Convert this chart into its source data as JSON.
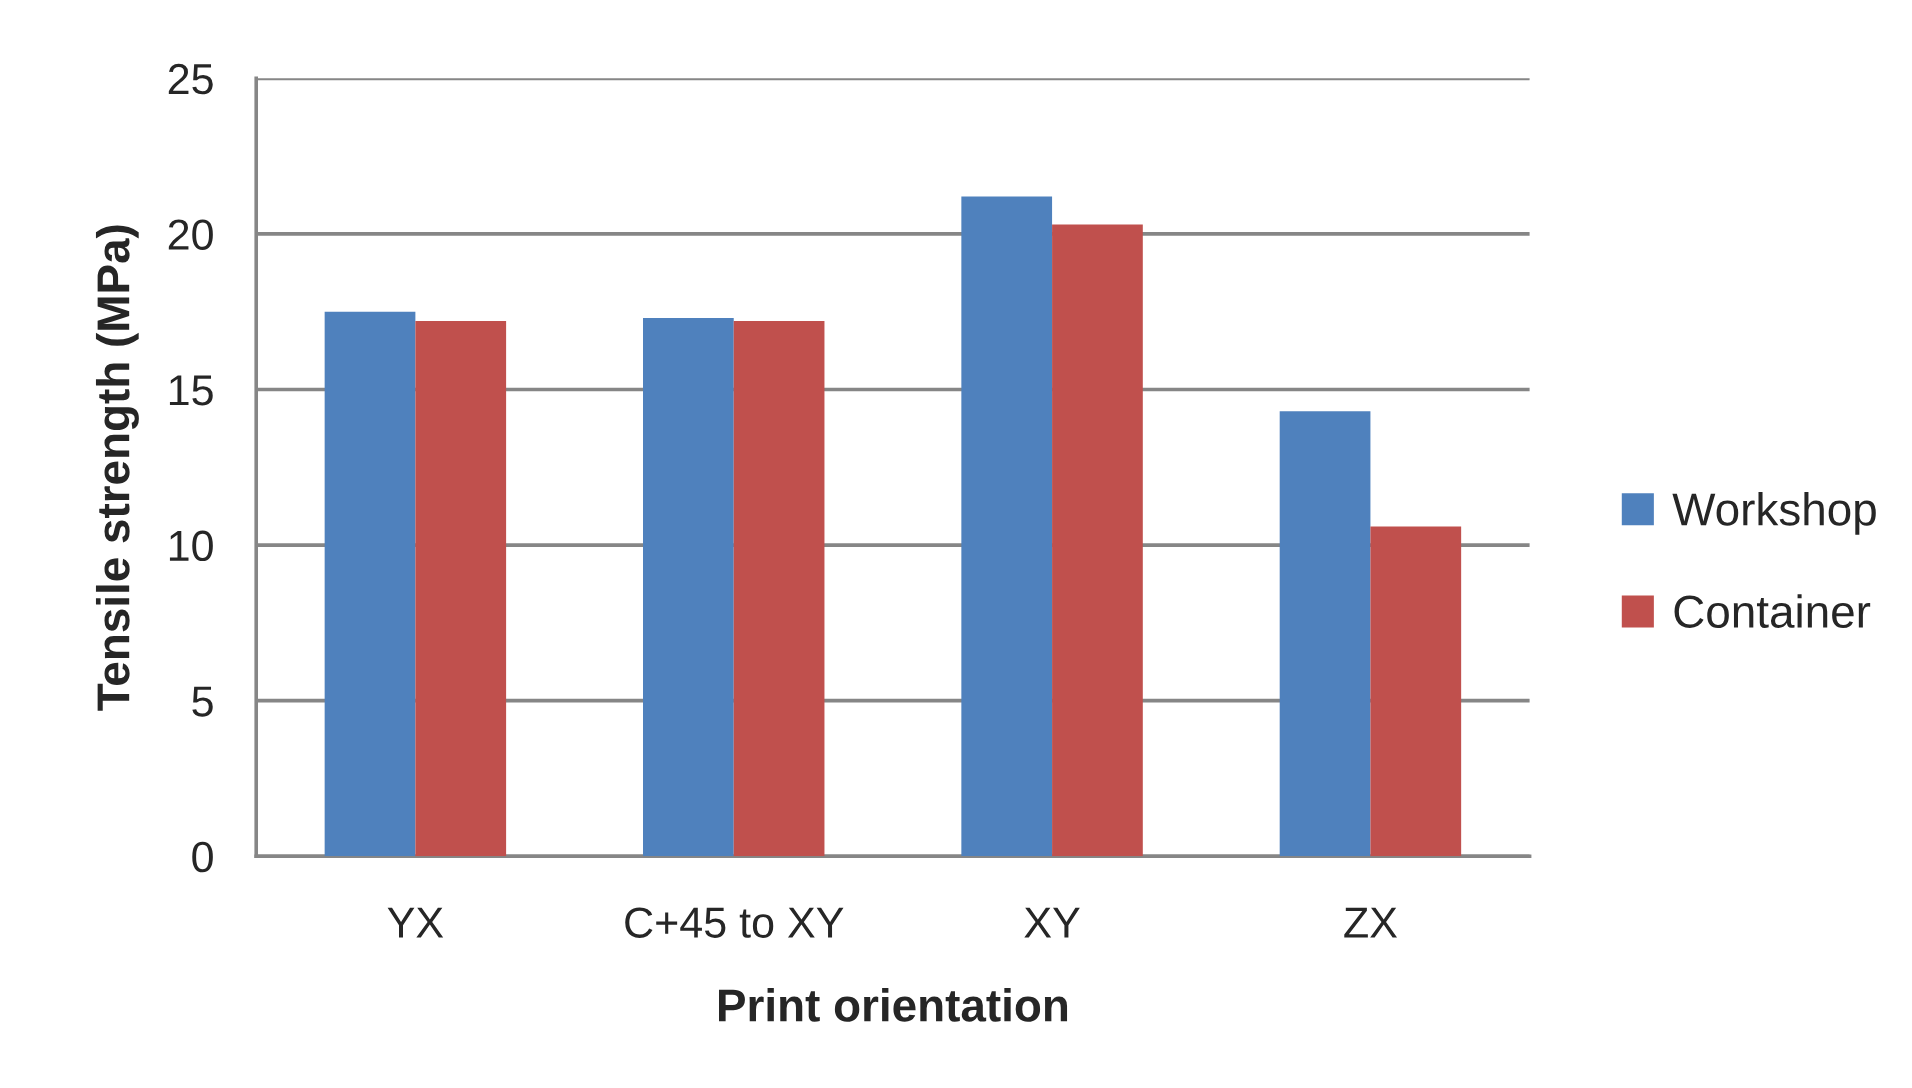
{
  "chart_data": {
    "type": "bar",
    "xlabel": "Print orientation",
    "ylabel": "Tensile strength (MPa)",
    "categories": [
      "YX",
      "C+45 to XY",
      "XY",
      "ZX"
    ],
    "series": [
      {
        "name": "Workshop",
        "color": "#4f81bd",
        "values": [
          17.5,
          17.3,
          21.2,
          14.3
        ]
      },
      {
        "name": "Container",
        "color": "#c0504d",
        "values": [
          17.2,
          17.2,
          20.3,
          10.6
        ]
      }
    ],
    "ylim": [
      0,
      25
    ],
    "yticks": [
      0,
      5,
      10,
      15,
      20,
      25
    ],
    "grid": "y",
    "legend": "right"
  }
}
